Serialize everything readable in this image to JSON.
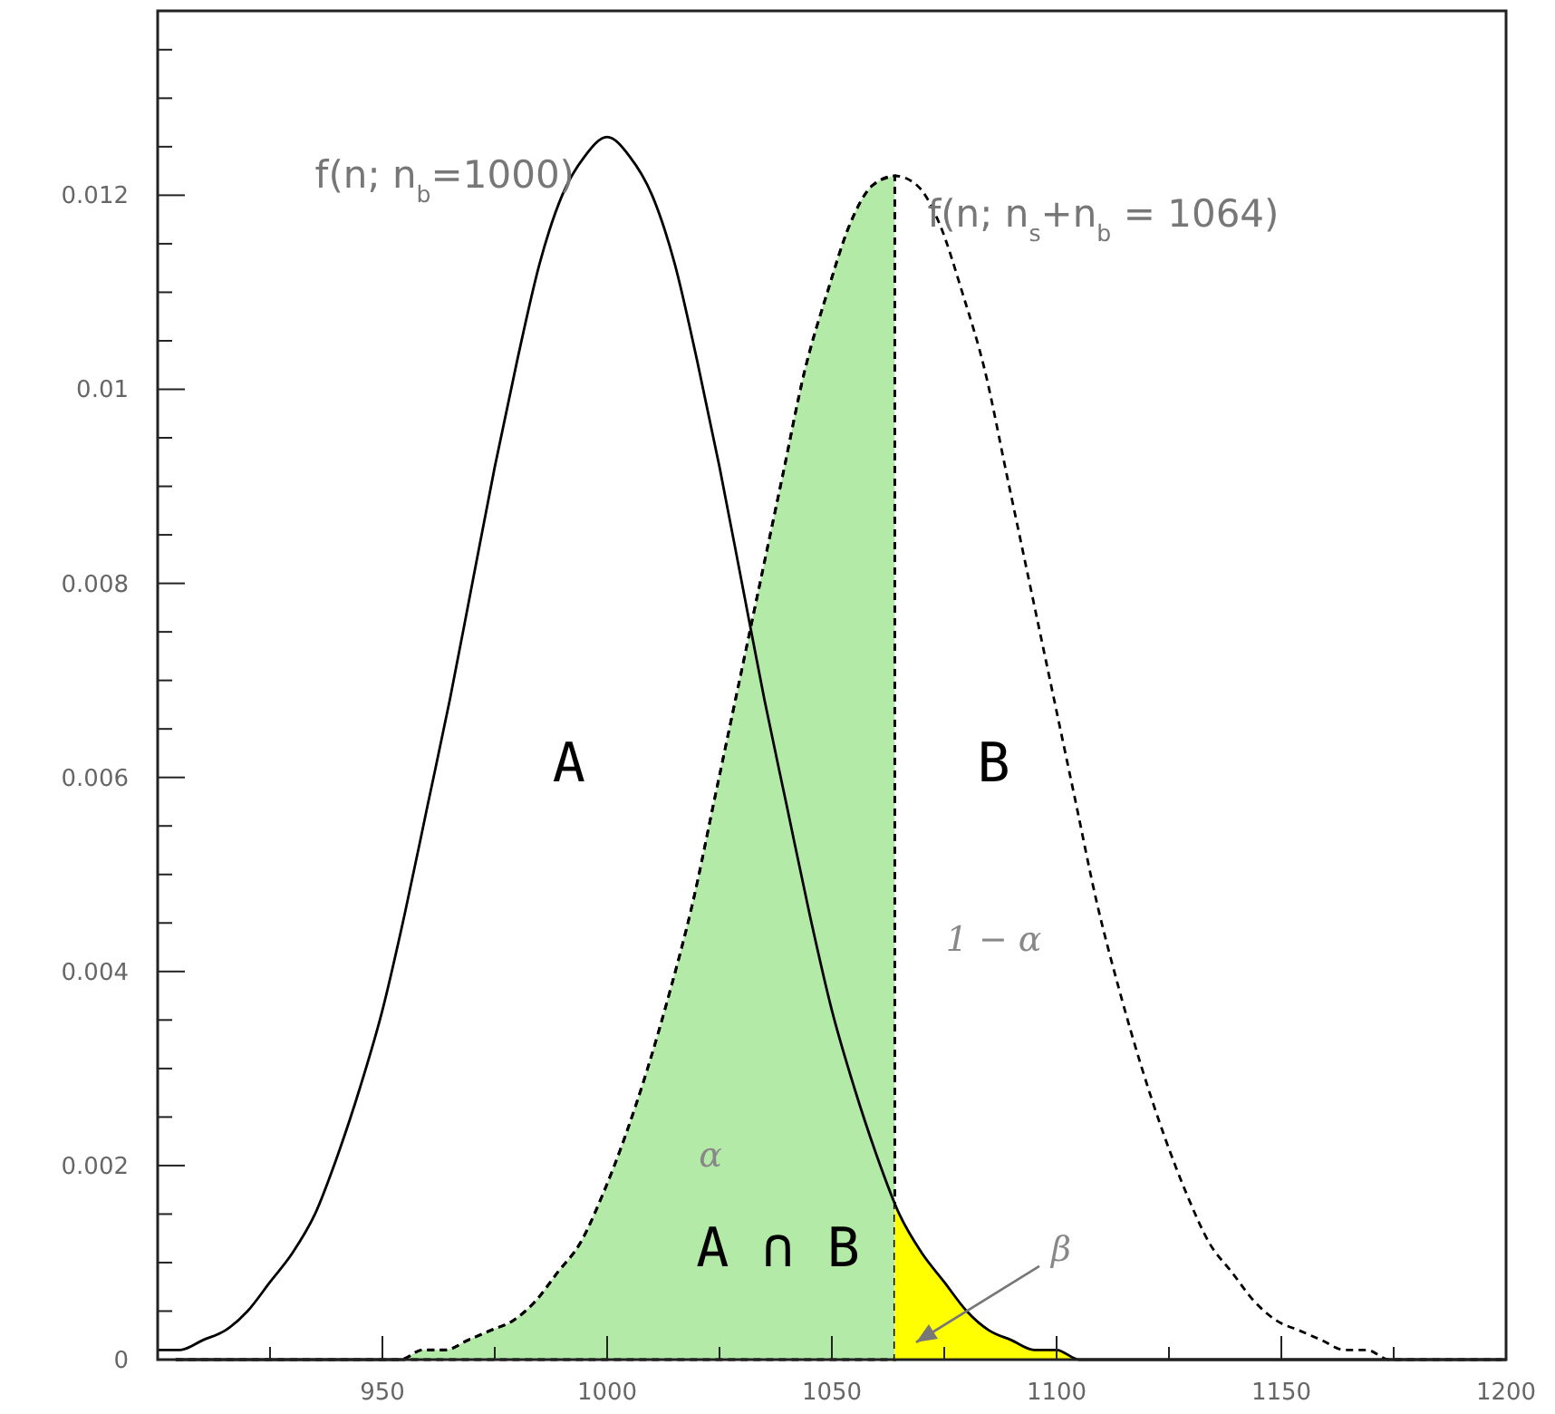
{
  "chart_data": {
    "type": "line",
    "xlim": [
      900,
      1200
    ],
    "ylim": [
      0,
      0.0139
    ],
    "xticks": [
      {
        "value": 925,
        "label": null
      },
      950,
      {
        "value": 975,
        "label": null
      },
      1000,
      {
        "value": 1025,
        "label": null
      },
      1050,
      {
        "value": 1075,
        "label": null
      },
      1100,
      {
        "value": 1125,
        "label": null
      },
      1150,
      {
        "value": 1175,
        "label": null
      },
      1200
    ],
    "yticks": [
      0,
      {
        "value": 0.0005,
        "label": null
      },
      0.002,
      {
        "value": 0.001,
        "label": null
      },
      {
        "value": 0.0015,
        "label": null
      },
      {
        "value": 0.0025,
        "label": null
      },
      {
        "value": 0.003,
        "label": null
      },
      {
        "value": 0.0035,
        "label": null
      },
      0.004,
      {
        "value": 0.0045,
        "label": null
      },
      {
        "value": 0.005,
        "label": null
      },
      {
        "value": 0.0055,
        "label": null
      },
      0.006,
      {
        "value": 0.0065,
        "label": null
      },
      {
        "value": 0.007,
        "label": null
      },
      {
        "value": 0.0075,
        "label": null
      },
      0.008,
      {
        "value": 0.0085,
        "label": null
      },
      {
        "value": 0.009,
        "label": null
      },
      {
        "value": 0.0095,
        "label": null
      },
      0.01,
      {
        "value": 0.0105,
        "label": null
      },
      {
        "value": 0.011,
        "label": null
      },
      {
        "value": 0.0115,
        "label": null
      },
      0.012,
      {
        "value": 0.0125,
        "label": null
      },
      {
        "value": 0.013,
        "label": null
      },
      {
        "value": 0.0135,
        "label": null
      }
    ],
    "grid": false,
    "marker": "none",
    "series": [
      {
        "type": "area",
        "color": "#b4eaa8",
        "line_style": "dashed",
        "x": [
          904,
          909,
          914,
          919,
          924,
          929,
          934,
          939,
          944,
          949,
          954,
          959,
          964,
          969,
          974,
          979,
          984,
          989,
          994,
          999,
          1004,
          1009,
          1014,
          1019,
          1024,
          1029,
          1034,
          1039,
          1044,
          1049,
          1054,
          1059,
          1064
        ],
        "values": [
          0,
          0,
          0,
          0,
          0,
          0,
          0,
          0,
          0,
          0,
          0,
          0.0001,
          0.0001,
          0.0002,
          0.0003,
          0.0004,
          0.0006,
          0.0009,
          0.0012,
          0.0017,
          0.0023,
          0.003,
          0.0038,
          0.0047,
          0.0058,
          0.0069,
          0.008,
          0.0091,
          0.0102,
          0.011,
          0.0117,
          0.0121,
          0.0122
        ]
      },
      {
        "type": "area",
        "color": "#ffff00",
        "x": [
          1064,
          1065,
          1070,
          1075,
          1080,
          1085,
          1090,
          1095,
          1100,
          1105,
          1110,
          1115,
          1120
        ],
        "values": [
          0.0016,
          0.0015,
          0.0011,
          0.0008,
          0.0005,
          0.0003,
          0.0002,
          0.0001,
          0.0001,
          0,
          0,
          0,
          0
        ]
      },
      {
        "name": "f(n; n$_{b}$=1000)",
        "color": "#000000",
        "line_style": "solid",
        "x": [
          900,
          905,
          910,
          915,
          920,
          925,
          930,
          935,
          940,
          945,
          950,
          955,
          960,
          965,
          970,
          975,
          980,
          985,
          990,
          995,
          1000,
          1005,
          1010,
          1015,
          1020,
          1025,
          1030,
          1035,
          1040,
          1045,
          1050,
          1055,
          1060,
          1065,
          1070,
          1075,
          1080,
          1085,
          1090,
          1095,
          1100,
          1105,
          1110,
          1115,
          1120,
          1125,
          1130,
          1135,
          1140,
          1145,
          1150,
          1155,
          1160,
          1165,
          1170,
          1175,
          1180,
          1185,
          1190,
          1195,
          1200
        ],
        "values": [
          0.0001,
          0.0001,
          0.0002,
          0.0003,
          0.0005,
          0.0008,
          0.0011,
          0.0015,
          0.0021,
          0.0028,
          0.0036,
          0.0046,
          0.0057,
          0.0068,
          0.008,
          0.0092,
          0.0103,
          0.0113,
          0.012,
          0.0124,
          0.0126,
          0.0124,
          0.012,
          0.0113,
          0.0103,
          0.0092,
          0.008,
          0.0068,
          0.0057,
          0.0046,
          0.0036,
          0.0028,
          0.0021,
          0.0015,
          0.0011,
          0.0008,
          0.0005,
          0.0003,
          0.0002,
          0.0001,
          0.0001,
          0,
          0,
          0,
          0,
          0,
          0,
          0,
          0,
          0,
          0,
          0,
          0,
          0,
          0,
          0,
          0,
          0,
          0,
          0,
          0
        ]
      },
      {
        "name": "f(n; n$_{s}$+n$_{b}$ = 1064)",
        "color": "#000000",
        "line_style": "dashed",
        "x": [
          904,
          909,
          914,
          919,
          924,
          929,
          934,
          939,
          944,
          949,
          954,
          959,
          964,
          969,
          974,
          979,
          984,
          989,
          994,
          999,
          1004,
          1009,
          1014,
          1019,
          1024,
          1029,
          1034,
          1039,
          1044,
          1049,
          1054,
          1059,
          1064,
          1069,
          1074,
          1079,
          1084,
          1089,
          1094,
          1099,
          1104,
          1109,
          1114,
          1119,
          1124,
          1129,
          1134,
          1139,
          1144,
          1149,
          1154,
          1159,
          1164,
          1169,
          1174,
          1179,
          1184,
          1189,
          1194,
          1199
        ],
        "values": [
          0,
          0,
          0,
          0,
          0,
          0,
          0,
          0,
          0,
          0,
          0,
          0.0001,
          0.0001,
          0.0002,
          0.0003,
          0.0004,
          0.0006,
          0.0009,
          0.0012,
          0.0017,
          0.0023,
          0.003,
          0.0038,
          0.0047,
          0.0058,
          0.0069,
          0.008,
          0.0091,
          0.0102,
          0.011,
          0.0117,
          0.0121,
          0.0122,
          0.0121,
          0.0117,
          0.011,
          0.0102,
          0.0091,
          0.008,
          0.0069,
          0.0058,
          0.0047,
          0.0038,
          0.003,
          0.0023,
          0.0017,
          0.0012,
          0.0009,
          0.0006,
          0.0004,
          0.0003,
          0.0002,
          0.0001,
          0.0001,
          0,
          0,
          0,
          0,
          0,
          0
        ]
      }
    ],
    "annotations": [
      "A",
      "B",
      "1 − α",
      "α",
      "A ∩ B",
      "β"
    ]
  }
}
